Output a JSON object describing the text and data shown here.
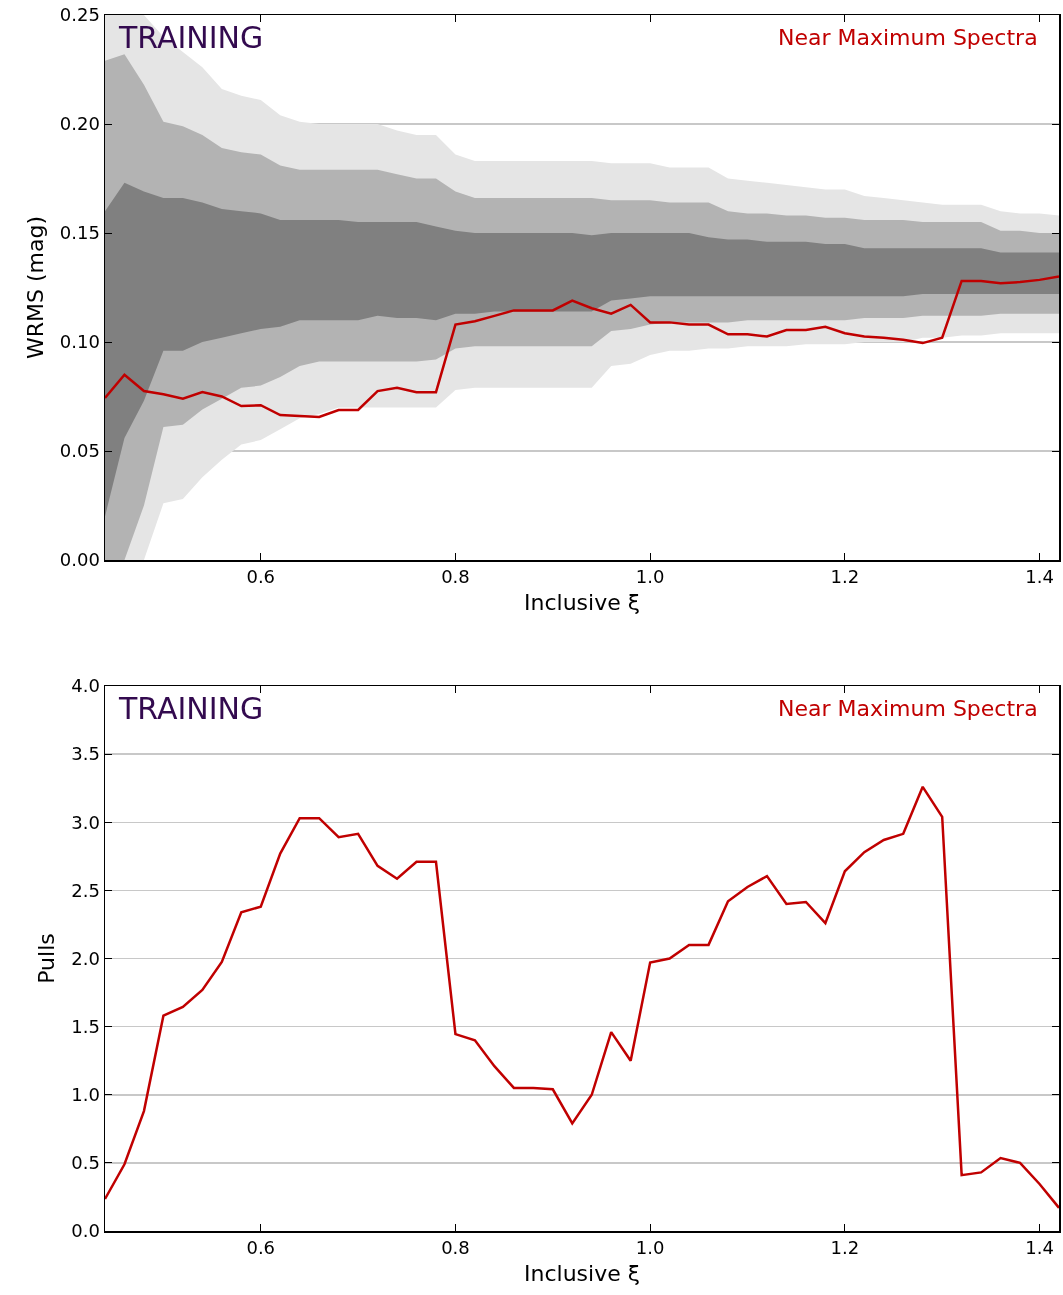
{
  "chart_data": [
    {
      "type": "line",
      "ylabel": "WRMS (mag)",
      "xlabel": "Inclusive ξ",
      "annotations": [
        "TRAINING"
      ],
      "x": [
        0.44,
        0.46,
        0.48,
        0.5,
        0.52,
        0.54,
        0.56,
        0.58,
        0.6,
        0.62,
        0.64,
        0.66,
        0.68,
        0.7,
        0.72,
        0.74,
        0.76,
        0.78,
        0.8,
        0.82,
        0.84,
        0.86,
        0.88,
        0.9,
        0.92,
        0.94,
        0.96,
        0.98,
        1.0,
        1.02,
        1.04,
        1.06,
        1.08,
        1.1,
        1.12,
        1.14,
        1.16,
        1.18,
        1.2,
        1.22,
        1.24,
        1.26,
        1.28,
        1.3,
        1.32,
        1.34,
        1.36,
        1.38,
        1.4,
        1.42
      ],
      "series": [
        {
          "type": "area",
          "color": "#e5e5e5",
          "values": [
            null,
            null,
            null,
            null,
            null,
            null,
            null,
            null,
            null,
            null,
            null,
            null,
            null,
            null,
            null,
            null,
            null,
            null,
            null,
            null,
            null,
            null,
            null,
            null,
            null,
            null,
            null,
            null,
            null,
            null,
            null,
            null,
            null,
            null,
            null,
            null,
            null,
            null,
            null,
            null,
            null,
            null,
            null,
            null,
            null,
            null,
            null,
            null,
            null,
            null
          ],
          "lower": [
            0,
            0,
            0,
            0.026,
            0.028,
            0.038,
            0.046,
            0.053,
            0.055,
            0.06,
            0.065,
            0.067,
            0.07,
            0.07,
            0.07,
            0.07,
            0.07,
            0.07,
            0.078,
            0.079,
            0.079,
            0.079,
            0.079,
            0.079,
            0.079,
            0.079,
            0.089,
            0.09,
            0.094,
            0.096,
            0.096,
            0.097,
            0.097,
            0.098,
            0.098,
            0.098,
            0.099,
            0.099,
            0.099,
            0.1,
            0.1,
            0.1,
            0.102,
            0.102,
            0.103,
            0.103,
            0.104,
            0.104,
            0.104,
            0.104
          ],
          "upper": [
            0.25,
            0.25,
            0.25,
            0.24,
            0.233,
            0.226,
            0.216,
            0.213,
            0.211,
            0.204,
            0.201,
            0.2,
            0.2,
            0.2,
            0.2,
            0.197,
            0.195,
            0.195,
            0.186,
            0.183,
            0.183,
            0.183,
            0.183,
            0.183,
            0.183,
            0.183,
            0.182,
            0.182,
            0.182,
            0.18,
            0.18,
            0.18,
            0.175,
            0.174,
            0.173,
            0.172,
            0.171,
            0.17,
            0.17,
            0.167,
            0.166,
            0.165,
            0.164,
            0.163,
            0.163,
            0.163,
            0.16,
            0.159,
            0.159,
            0.158
          ]
        },
        {
          "type": "area",
          "color": "#b3b3b3",
          "values": [
            null,
            null,
            null,
            null,
            null,
            null,
            null,
            null,
            null,
            null,
            null,
            null,
            null,
            null,
            null,
            null,
            null,
            null,
            null,
            null,
            null,
            null,
            null,
            null,
            null,
            null,
            null,
            null,
            null,
            null,
            null,
            null,
            null,
            null,
            null,
            null,
            null,
            null,
            null,
            null,
            null,
            null,
            null,
            null,
            null,
            null,
            null,
            null,
            null,
            null
          ],
          "lower": [
            0,
            0,
            0.025,
            0.061,
            0.062,
            0.069,
            0.074,
            0.079,
            0.08,
            0.084,
            0.089,
            0.091,
            0.091,
            0.091,
            0.091,
            0.091,
            0.091,
            0.092,
            0.097,
            0.098,
            0.098,
            0.098,
            0.098,
            0.098,
            0.098,
            0.098,
            0.105,
            0.106,
            0.108,
            0.109,
            0.109,
            0.109,
            0.109,
            0.11,
            0.11,
            0.11,
            0.11,
            0.11,
            0.11,
            0.111,
            0.111,
            0.111,
            0.112,
            0.112,
            0.112,
            0.112,
            0.113,
            0.113,
            0.113,
            0.113
          ],
          "upper": [
            0.229,
            0.232,
            0.218,
            0.201,
            0.199,
            0.195,
            0.189,
            0.187,
            0.186,
            0.181,
            0.179,
            0.179,
            0.179,
            0.179,
            0.179,
            0.177,
            0.175,
            0.175,
            0.169,
            0.166,
            0.166,
            0.166,
            0.166,
            0.166,
            0.166,
            0.166,
            0.165,
            0.165,
            0.165,
            0.164,
            0.164,
            0.164,
            0.16,
            0.159,
            0.159,
            0.158,
            0.158,
            0.157,
            0.157,
            0.156,
            0.156,
            0.156,
            0.155,
            0.155,
            0.155,
            0.155,
            0.151,
            0.151,
            0.15,
            0.15
          ]
        },
        {
          "type": "area",
          "color": "#808080",
          "values": [
            null,
            null,
            null,
            null,
            null,
            null,
            null,
            null,
            null,
            null,
            null,
            null,
            null,
            null,
            null,
            null,
            null,
            null,
            null,
            null,
            null,
            null,
            null,
            null,
            null,
            null,
            null,
            null,
            null,
            null,
            null,
            null,
            null,
            null,
            null,
            null,
            null,
            null,
            null,
            null,
            null,
            null,
            null,
            null,
            null,
            null,
            null,
            null,
            null,
            null
          ],
          "lower": [
            0.02,
            0.056,
            0.073,
            0.096,
            0.096,
            0.1,
            0.102,
            0.104,
            0.106,
            0.107,
            0.11,
            0.11,
            0.11,
            0.11,
            0.112,
            0.111,
            0.111,
            0.11,
            0.113,
            0.113,
            0.114,
            0.114,
            0.114,
            0.114,
            0.114,
            0.114,
            0.119,
            0.12,
            0.121,
            0.121,
            0.121,
            0.121,
            0.121,
            0.121,
            0.121,
            0.121,
            0.121,
            0.121,
            0.121,
            0.121,
            0.121,
            0.121,
            0.122,
            0.122,
            0.122,
            0.122,
            0.122,
            0.122,
            0.122,
            0.122
          ],
          "upper": [
            0.16,
            0.173,
            0.169,
            0.166,
            0.166,
            0.164,
            0.161,
            0.16,
            0.159,
            0.156,
            0.156,
            0.156,
            0.156,
            0.155,
            0.155,
            0.155,
            0.155,
            0.153,
            0.151,
            0.15,
            0.15,
            0.15,
            0.15,
            0.15,
            0.15,
            0.149,
            0.15,
            0.15,
            0.15,
            0.15,
            0.15,
            0.148,
            0.147,
            0.147,
            0.146,
            0.146,
            0.146,
            0.145,
            0.145,
            0.143,
            0.143,
            0.143,
            0.143,
            0.143,
            0.143,
            0.143,
            0.141,
            0.141,
            0.141,
            0.141
          ]
        },
        {
          "name": "Near Maximum Spectra",
          "color": "#c00000",
          "values": [
            0.0743,
            0.085,
            0.0775,
            0.076,
            0.074,
            0.077,
            0.075,
            0.0706,
            0.071,
            0.0665,
            0.066,
            0.0656,
            0.0688,
            0.0688,
            0.0775,
            0.079,
            0.077,
            0.077,
            0.108,
            0.1095,
            0.112,
            0.1145,
            0.1145,
            0.1145,
            0.119,
            0.1155,
            0.113,
            0.117,
            0.109,
            0.109,
            0.108,
            0.108,
            0.1035,
            0.1035,
            0.1025,
            0.1055,
            0.1055,
            0.107,
            0.104,
            0.1025,
            0.102,
            0.101,
            0.0995,
            0.102,
            0.128,
            0.128,
            0.127,
            0.1275,
            0.1285,
            0.13
          ]
        }
      ],
      "xlim": [
        0.44,
        1.42
      ],
      "ylim": [
        0,
        0.25
      ],
      "xticks": [
        0.6,
        0.8,
        {
          "value": 1.0,
          "label": "1.0"
        },
        1.2,
        1.4
      ],
      "yticks": [
        {
          "value": 0,
          "label": "0.00"
        },
        {
          "value": 0.05,
          "label": "0.05"
        },
        {
          "value": 0.1,
          "label": "0.10"
        },
        {
          "value": 0.15,
          "label": "0.15"
        },
        {
          "value": 0.2,
          "label": "0.20"
        },
        {
          "value": 0.25,
          "label": "0.25"
        }
      ],
      "grid": "y",
      "line_style": "solid"
    },
    {
      "type": "line",
      "ylabel": "Pulls",
      "xlabel": "Inclusive ξ",
      "annotations": [
        "TRAINING"
      ],
      "x": [
        0.44,
        0.46,
        0.48,
        0.5,
        0.52,
        0.54,
        0.56,
        0.58,
        0.6,
        0.62,
        0.64,
        0.66,
        0.68,
        0.7,
        0.72,
        0.74,
        0.76,
        0.78,
        0.8,
        0.82,
        0.84,
        0.86,
        0.88,
        0.9,
        0.92,
        0.94,
        0.96,
        0.98,
        1.0,
        1.02,
        1.04,
        1.06,
        1.08,
        1.1,
        1.12,
        1.14,
        1.16,
        1.18,
        1.2,
        1.22,
        1.24,
        1.26,
        1.28,
        1.3,
        1.32,
        1.34,
        1.36,
        1.38,
        1.4,
        1.42
      ],
      "series": [
        {
          "name": "Near Maximum Spectra",
          "color": "#c00000",
          "values": [
            0.235,
            0.49,
            0.88,
            1.58,
            1.645,
            1.77,
            1.975,
            2.34,
            2.38,
            2.77,
            3.03,
            3.03,
            2.89,
            2.915,
            2.68,
            2.585,
            2.71,
            2.71,
            1.445,
            1.4,
            1.21,
            1.05,
            1.05,
            1.04,
            0.79,
            1.0,
            1.46,
            1.25,
            1.97,
            2.0,
            2.1,
            2.1,
            2.42,
            2.525,
            2.605,
            2.4,
            2.415,
            2.26,
            2.64,
            2.78,
            2.87,
            2.915,
            3.26,
            3.04,
            0.41,
            0.43,
            0.535,
            0.5,
            0.345,
            0.17
          ]
        }
      ],
      "xlim": [
        0.44,
        1.42
      ],
      "ylim": [
        0,
        4
      ],
      "xticks": [
        0.6,
        0.8,
        {
          "value": 1.0,
          "label": "1.0"
        },
        1.2,
        1.4
      ],
      "yticks": [
        {
          "value": 0,
          "label": "0.0"
        },
        {
          "value": 0.5,
          "label": "0.5"
        },
        {
          "value": 1,
          "label": "1.0"
        },
        {
          "value": 1.5,
          "label": "1.5"
        },
        {
          "value": 2,
          "label": "2.0"
        },
        {
          "value": 2.5,
          "label": "2.5"
        },
        {
          "value": 3,
          "label": "3.0"
        },
        {
          "value": 3.5,
          "label": "3.5"
        },
        {
          "value": 4,
          "label": "4.0"
        }
      ],
      "grid": "y",
      "line_style": "solid"
    }
  ]
}
